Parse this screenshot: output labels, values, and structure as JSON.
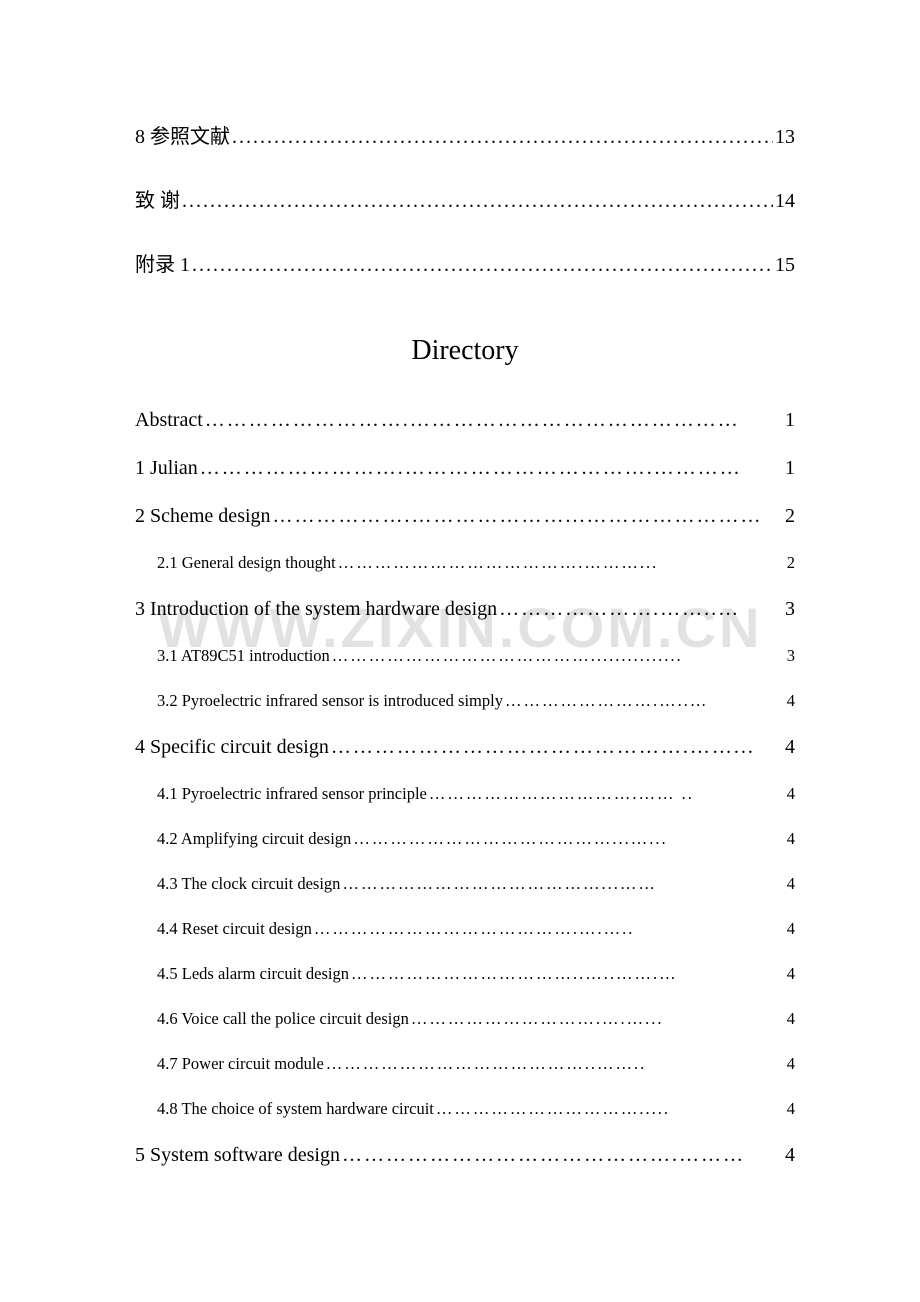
{
  "watermark": "WWW.ZIXIN.COM.CN",
  "top_toc": {
    "items": [
      {
        "text": "8  参照文献 ",
        "dots": "..............................................................................................",
        "page": "13"
      },
      {
        "text": "致    谢",
        "dots": ".......................................................................................................",
        "page": "14"
      },
      {
        "text": "附录 1",
        "dots": ".........................................................................................................",
        "page": "15"
      }
    ]
  },
  "directory_heading": "Directory",
  "eng_toc": {
    "items": [
      {
        "text": "Abstract ",
        "dots": "……………………….………………………………………",
        "page": "1",
        "level": 0
      },
      {
        "text": "1 Julian ",
        "dots": "……………………….…………………………….…………",
        "page": "1",
        "level": 0
      },
      {
        "text": "2 Scheme design ",
        "dots": "……………….…………………...……………………",
        "page": "2",
        "level": 0
      },
      {
        "text": "2.1 General design thought ",
        "dots": "………………………………….………...",
        "page": "2",
        "level": 1
      },
      {
        "text": "3 Introduction of the system hardware design ",
        "dots": "………………….……..…",
        "page": "3",
        "level": 0
      },
      {
        "text": "3.1 AT89C51 introduction ",
        "dots": "……………………………………...............",
        "page": "3",
        "level": 1
      },
      {
        "text": "3.2 Pyroelectric infrared sensor is introduced simply ",
        "dots": "…………………….…..…",
        "page": "4",
        "level": 1
      },
      {
        "text": "4 Specific circuit design ",
        "dots": "………………………………………….……...",
        "page": "4",
        "level": 0
      },
      {
        "text": "4.1 Pyroelectric infrared sensor principle ",
        "dots": "…………………………….…… ..",
        "page": "4",
        "level": 1
      },
      {
        "text": "4.2 Amplifying circuit design   ",
        "dots": "……………………………………...…...",
        "page": "4",
        "level": 1
      },
      {
        "text": "4.3 The clock circuit design ",
        "dots": "……………………………………...……",
        "page": "4",
        "level": 1
      },
      {
        "text": "4.4 Reset circuit design ",
        "dots": "…………………………………….….….. ",
        "page": "4",
        "level": 1
      },
      {
        "text": "4.5 Leds alarm circuit design",
        "dots": "………………………………..…..…….… ",
        "page": "4",
        "level": 1
      },
      {
        "text": "4.6 Voice call the police circuit design   ",
        "dots": "………………………….….…... ",
        "page": "4",
        "level": 1
      },
      {
        "text": "4.7 Power circuit module",
        "dots": "……………………………………..…….. ",
        "page": "4",
        "level": 1
      },
      {
        "text": "4.8 The choice of system hardware circuit   ",
        "dots": "……………………………..... ",
        "page": "4",
        "level": 1
      },
      {
        "text": "5 System software design ",
        "dots": "……………………………………….……… ",
        "page": "4",
        "level": 0
      }
    ]
  }
}
